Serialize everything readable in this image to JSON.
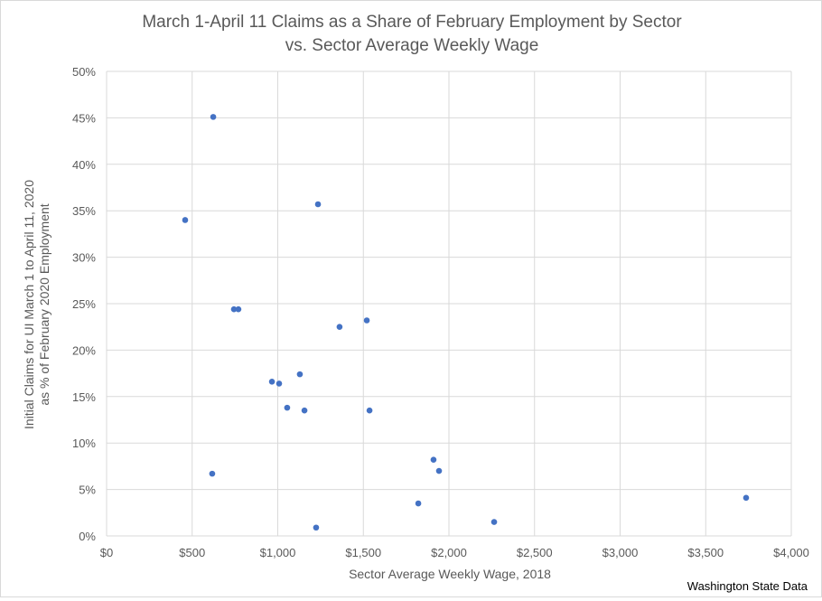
{
  "chart_data": {
    "type": "scatter",
    "title": [
      "March 1-April 11 Claims as a Share of February Employment by Sector",
      "vs. Sector Average Weekly Wage"
    ],
    "xlabel": "Sector Average Weekly Wage, 2018",
    "ylabel": [
      "Initial Claims for UI  March 1 to April 11, 2020",
      "as % of February 2020  Employment"
    ],
    "xlim": [
      0,
      4000
    ],
    "ylim": [
      0,
      50
    ],
    "xticks": [
      0,
      500,
      1000,
      1500,
      2000,
      2500,
      3000,
      3500,
      4000
    ],
    "xtick_labels": [
      "$0",
      "$500",
      "$1,000",
      "$1,500",
      "$2,000",
      "$2,500",
      "$3,000",
      "$3,500",
      "$4,000"
    ],
    "yticks": [
      0,
      5,
      10,
      15,
      20,
      25,
      30,
      35,
      40,
      45,
      50
    ],
    "ytick_labels": [
      "0%",
      "5%",
      "10%",
      "15%",
      "20%",
      "25%",
      "30%",
      "35%",
      "40%",
      "45%",
      "50%"
    ],
    "grid": true,
    "color": "#4472c4",
    "points": [
      {
        "x": 623,
        "y": 45.1
      },
      {
        "x": 459,
        "y": 34.0
      },
      {
        "x": 1235,
        "y": 35.7
      },
      {
        "x": 744,
        "y": 24.4
      },
      {
        "x": 770,
        "y": 24.4
      },
      {
        "x": 1361,
        "y": 22.5
      },
      {
        "x": 1520,
        "y": 23.2
      },
      {
        "x": 966,
        "y": 16.6
      },
      {
        "x": 1008,
        "y": 16.4
      },
      {
        "x": 1129,
        "y": 17.4
      },
      {
        "x": 1055,
        "y": 13.8
      },
      {
        "x": 1156,
        "y": 13.5
      },
      {
        "x": 1536,
        "y": 13.5
      },
      {
        "x": 617,
        "y": 6.7
      },
      {
        "x": 1910,
        "y": 8.2
      },
      {
        "x": 1942,
        "y": 7.0
      },
      {
        "x": 1821,
        "y": 3.5
      },
      {
        "x": 1224,
        "y": 0.9
      },
      {
        "x": 2264,
        "y": 1.5
      },
      {
        "x": 3736,
        "y": 4.1
      }
    ],
    "annotation": "Washington State Data"
  }
}
